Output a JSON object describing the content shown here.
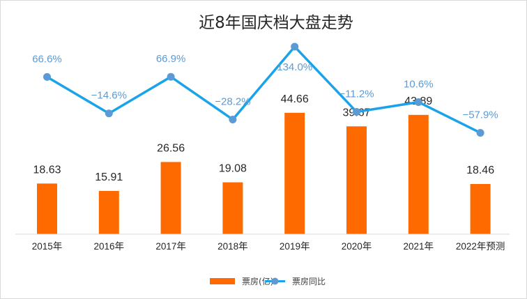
{
  "chart_data": {
    "type": "bar",
    "title": "近8年国庆档大盘走势",
    "categories": [
      "2015年",
      "2016年",
      "2017年",
      "2018年",
      "2019年",
      "2020年",
      "2021年",
      "2022年预测"
    ],
    "series": [
      {
        "name": "票房(亿)",
        "type": "bar",
        "values": [
          18.63,
          15.91,
          26.56,
          19.08,
          44.66,
          39.67,
          43.89,
          18.46
        ],
        "labels": [
          "18.63",
          "15.91",
          "26.56",
          "19.08",
          "44.66",
          "39.67",
          "43.89",
          "18.46"
        ],
        "color": "#ff6a00"
      },
      {
        "name": "票房同比",
        "type": "line",
        "values": [
          66.6,
          -14.6,
          66.9,
          -28.2,
          134.0,
          -11.2,
          10.6,
          -57.9
        ],
        "labels": [
          "66.6%",
          "−14.6%",
          "66.9%",
          "−28.2%",
          "134.0%",
          "−11.2%",
          "10.6%",
          "−57.9%"
        ],
        "color": "#1aa3e8",
        "marker_color": "#5b9bd5"
      }
    ],
    "highlight_color": "#ff0000",
    "highlight_index": 7,
    "grid": false,
    "legend": "bottom"
  }
}
